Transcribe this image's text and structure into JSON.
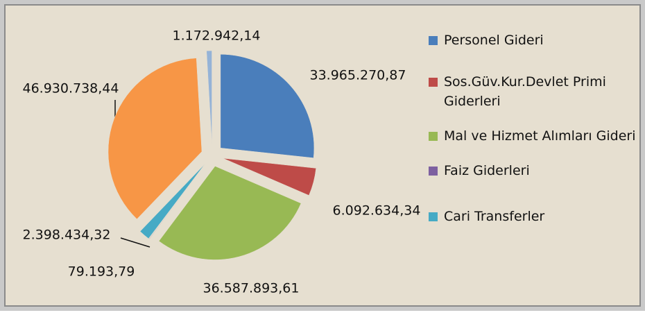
{
  "chart_data": {
    "type": "pie",
    "categories": [
      "Personel Gideri",
      "Sos.Güv.Kur.Devlet Primi Giderleri",
      "Mal ve Hizmet Alımları Gideri",
      "Faiz Giderleri",
      "Cari Transferler",
      null,
      null
    ],
    "values": [
      33965270.87,
      6092634.34,
      36587893.61,
      79193.79,
      2398434.32,
      46930738.44,
      1172942.14
    ],
    "value_labels": [
      "33.965.270,87",
      "6.092.634,34",
      "36.587.893,61",
      "79.193,79",
      "2.398.434,32",
      "46.930.738,44",
      "1.172.942,14"
    ],
    "colors": [
      "#4a7ebb",
      "#be4b48",
      "#98b954",
      "#7d60a0",
      "#46aac5",
      "#f79646",
      "#95b3d7"
    ],
    "legend": "right"
  }
}
